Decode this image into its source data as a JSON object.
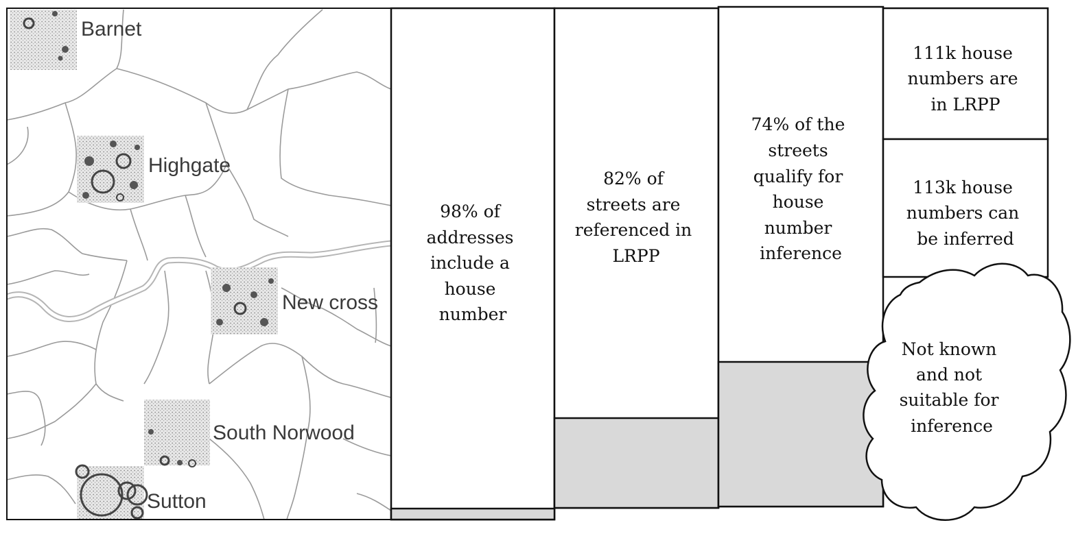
{
  "map": {
    "labels": {
      "barnet": "Barnet",
      "highgate": "Highgate",
      "new_cross": "New cross",
      "south_norwood": "South Norwood",
      "sutton": "Sutton"
    }
  },
  "columns": [
    {
      "lines": [
        "98% of",
        "addresses",
        "include a",
        "house",
        "number"
      ],
      "value_pct": 98
    },
    {
      "lines": [
        "82% of",
        "streets are",
        "referenced in",
        "LRPP"
      ],
      "value_pct": 82
    },
    {
      "lines": [
        "74% of the",
        "streets",
        "qualify for",
        "house",
        "number",
        "inference"
      ],
      "value_pct": 74
    }
  ],
  "stack": {
    "top": {
      "lines": [
        "111k house",
        "numbers are",
        "in LRPP"
      ]
    },
    "middle": {
      "lines": [
        "113k house",
        "numbers can",
        "be inferred"
      ]
    }
  },
  "cloud": {
    "lines": [
      "Not known",
      "and not",
      "suitable for",
      "inference"
    ]
  },
  "colors": {
    "border": "#111111",
    "shade": "#d9d9d9",
    "map_line": "#9a9a9a",
    "river": "#b5b5b5",
    "label": "#3a3a3a"
  }
}
